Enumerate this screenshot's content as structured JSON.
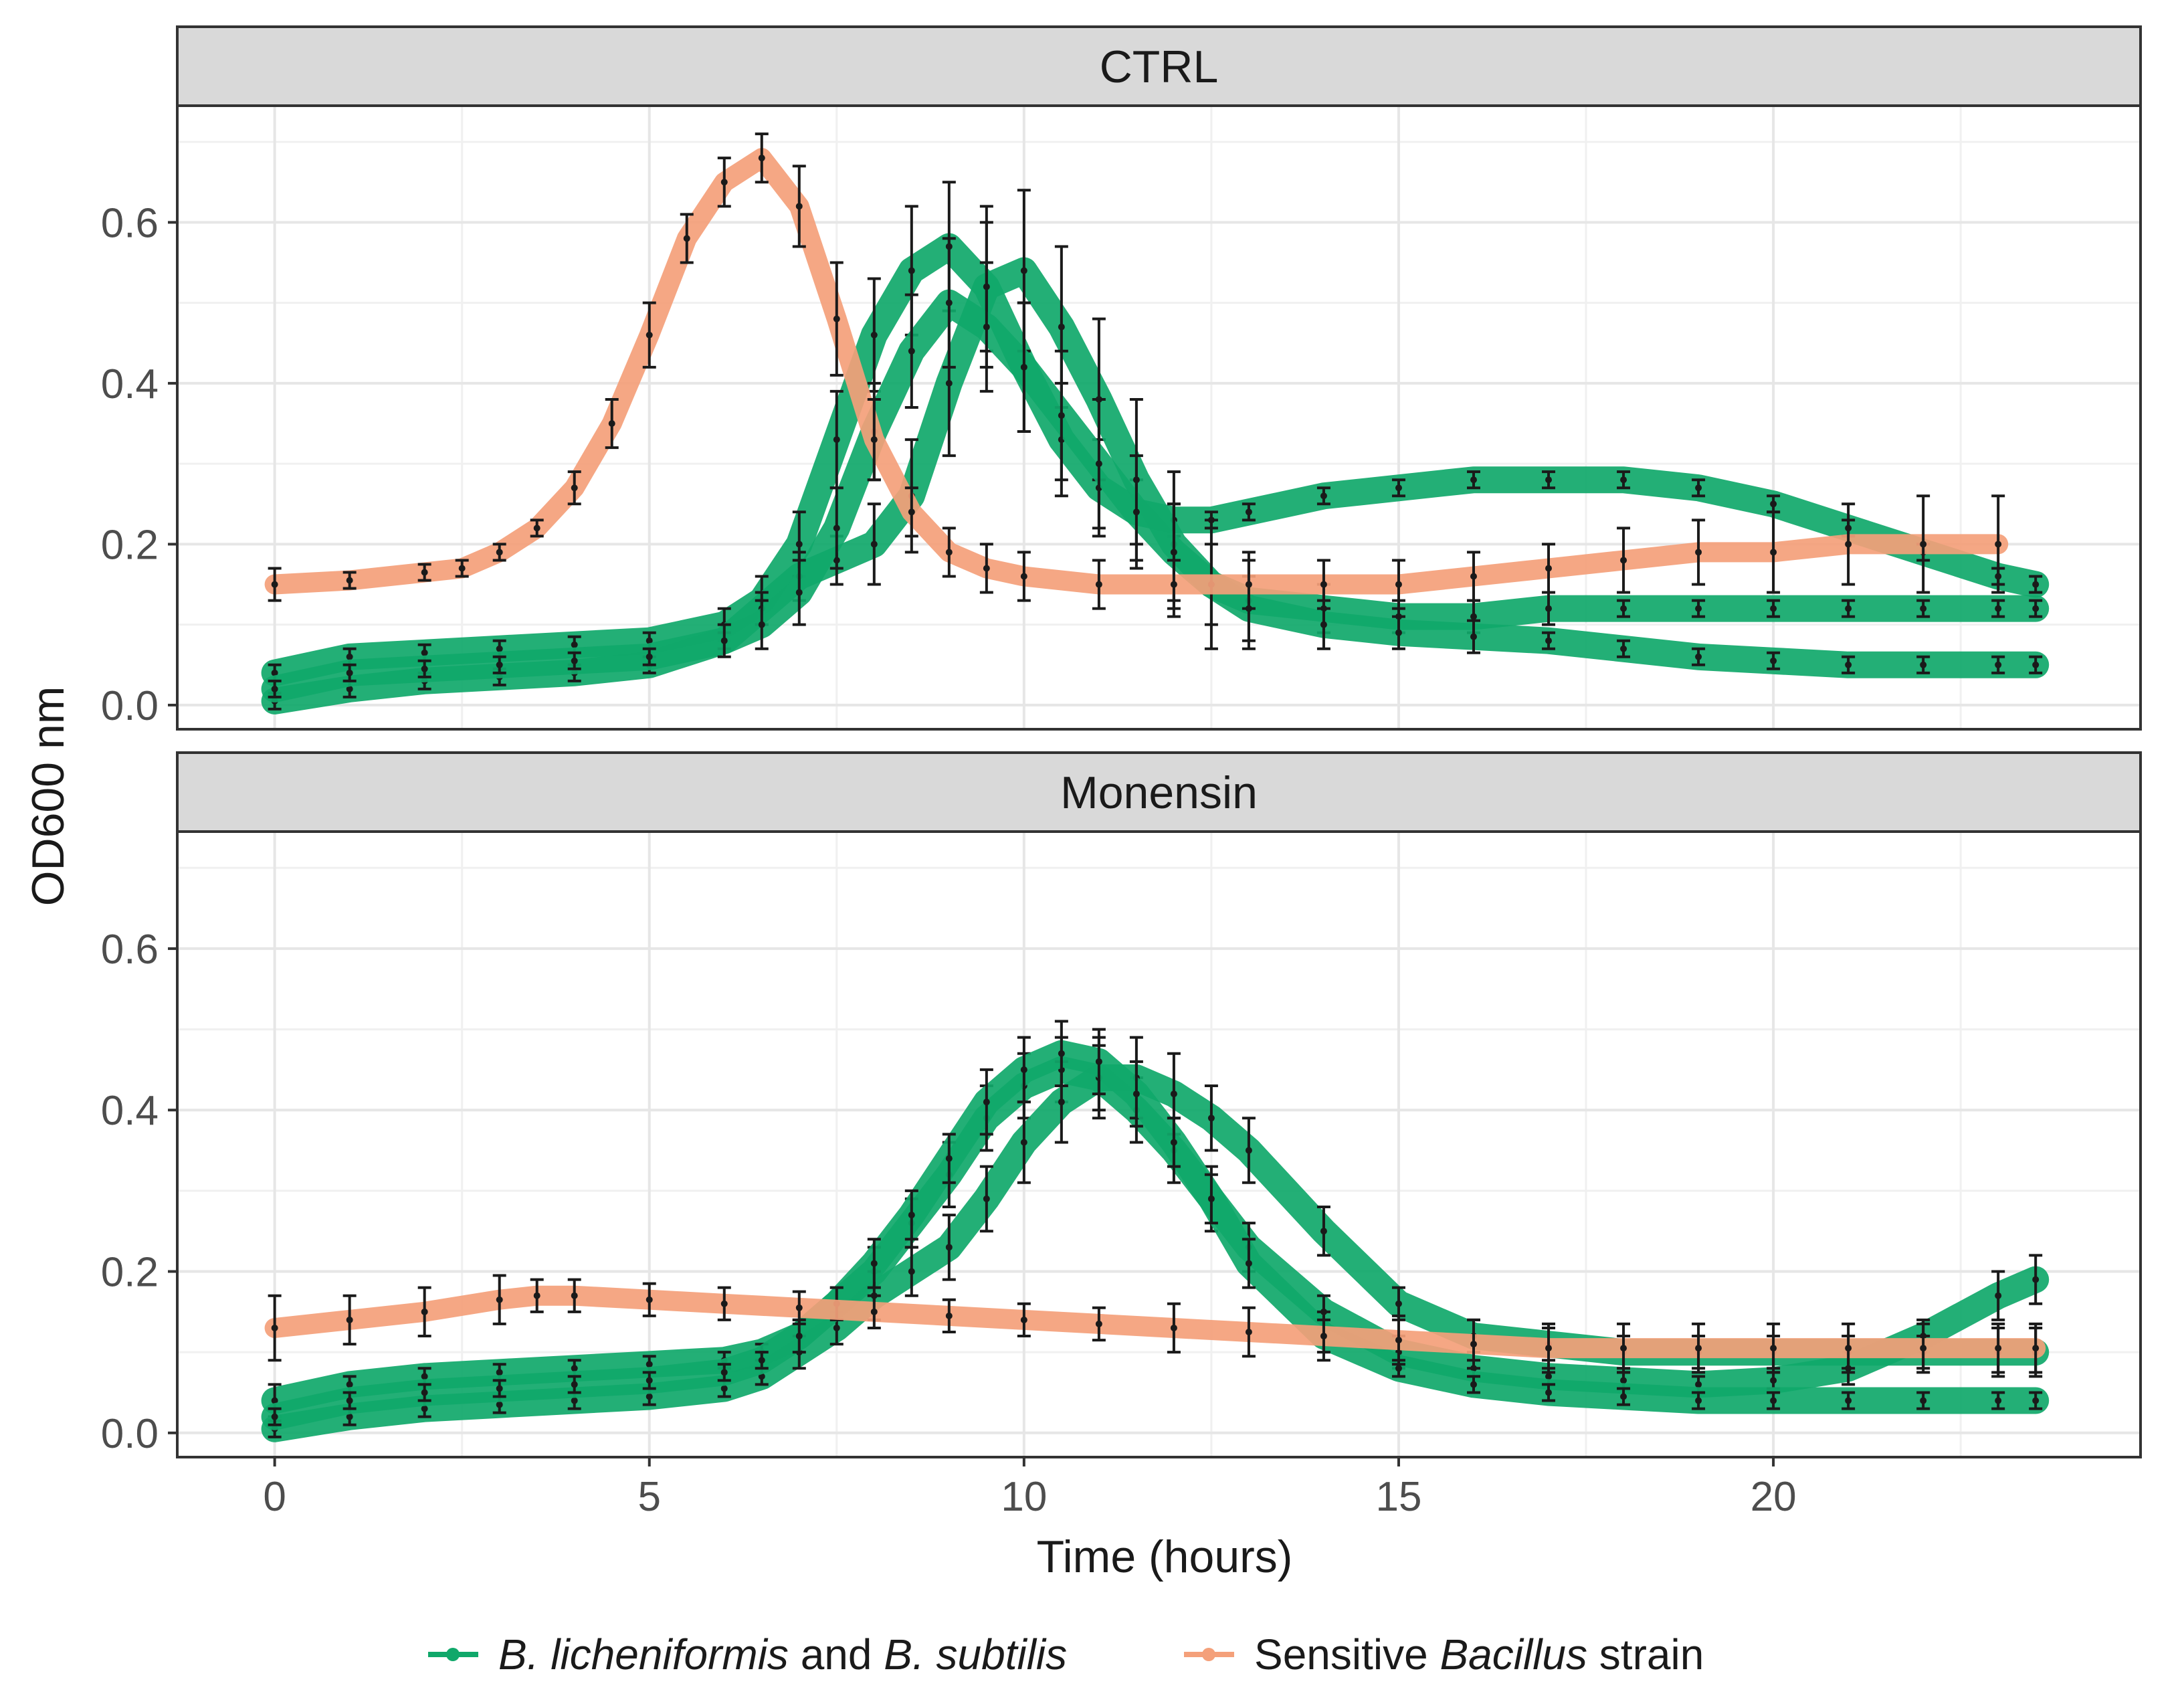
{
  "chart_data": {
    "type": "line",
    "xlabel": "Time (hours)",
    "ylabel": "OD600 nm",
    "xlim": [
      -1.3,
      24.9
    ],
    "ylim": [
      -0.03,
      0.745
    ],
    "x_ticks": [
      0,
      5,
      10,
      15,
      20
    ],
    "y_ticks": [
      0.0,
      0.2,
      0.4,
      0.6
    ],
    "y_tick_labels": [
      "0.0",
      "0.2",
      "0.4",
      "0.6"
    ],
    "x_tick_labels": [
      "0",
      "5",
      "10",
      "15",
      "20"
    ],
    "grid": true,
    "legend": {
      "position": "bottom",
      "entries": [
        {
          "italic1": "B. licheniformis",
          "plain": " and ",
          "italic2": "B. subtilis",
          "color": "#10a86a"
        },
        {
          "plain1": "Sensitive ",
          "italic": "Bacillus",
          "plain2": " strain",
          "color": "#f4a07a"
        }
      ]
    },
    "panels": [
      {
        "title": "CTRL",
        "series": [
          {
            "name": "B. licheniformis and B. subtilis (1)",
            "color": "#10a86a",
            "x": [
              0,
              1,
              2,
              3,
              4,
              5,
              6,
              6.5,
              7,
              7.5,
              8,
              8.5,
              9,
              9.5,
              10,
              10.5,
              11,
              11.5,
              12,
              12.5,
              13,
              14,
              15,
              16,
              17,
              18,
              19,
              20,
              21,
              22,
              23,
              23.5
            ],
            "y": [
              0.04,
              0.06,
              0.065,
              0.07,
              0.075,
              0.08,
              0.1,
              0.13,
              0.2,
              0.33,
              0.46,
              0.54,
              0.57,
              0.52,
              0.42,
              0.33,
              0.27,
              0.24,
              0.23,
              0.23,
              0.24,
              0.26,
              0.27,
              0.28,
              0.28,
              0.28,
              0.27,
              0.25,
              0.22,
              0.19,
              0.16,
              0.15
            ],
            "err": [
              0.01,
              0.01,
              0.01,
              0.01,
              0.01,
              0.01,
              0.02,
              0.03,
              0.04,
              0.06,
              0.07,
              0.08,
              0.08,
              0.08,
              0.08,
              0.07,
              0.06,
              0.04,
              0.02,
              0.01,
              0.01,
              0.01,
              0.01,
              0.01,
              0.01,
              0.01,
              0.01,
              0.01,
              0.01,
              0.01,
              0.01,
              0.01
            ]
          },
          {
            "name": "B. licheniformis and B. subtilis (2)",
            "color": "#10a86a",
            "x": [
              0,
              1,
              2,
              3,
              4,
              5,
              6,
              6.5,
              7,
              7.5,
              8,
              8.5,
              9,
              9.5,
              10,
              10.5,
              11,
              11.5,
              12,
              12.5,
              13,
              14,
              15,
              16,
              17,
              18,
              19,
              20,
              21,
              22,
              23,
              23.5
            ],
            "y": [
              0.005,
              0.02,
              0.03,
              0.035,
              0.04,
              0.05,
              0.08,
              0.12,
              0.16,
              0.18,
              0.2,
              0.26,
              0.4,
              0.52,
              0.54,
              0.47,
              0.38,
              0.28,
              0.2,
              0.15,
              0.13,
              0.12,
              0.11,
              0.11,
              0.12,
              0.12,
              0.12,
              0.12,
              0.12,
              0.12,
              0.12,
              0.12
            ],
            "err": [
              0.01,
              0.01,
              0.01,
              0.01,
              0.01,
              0.01,
              0.01,
              0.02,
              0.03,
              0.03,
              0.05,
              0.07,
              0.09,
              0.1,
              0.1,
              0.1,
              0.1,
              0.1,
              0.09,
              0.08,
              0.06,
              0.03,
              0.02,
              0.02,
              0.02,
              0.01,
              0.01,
              0.01,
              0.01,
              0.01,
              0.01,
              0.01
            ]
          },
          {
            "name": "B. licheniformis and B. subtilis (3)",
            "color": "#10a86a",
            "x": [
              0,
              1,
              2,
              3,
              4,
              5,
              6,
              6.5,
              7,
              7.5,
              8,
              8.5,
              9,
              9.5,
              10,
              10.5,
              11,
              11.5,
              12,
              12.5,
              13,
              14,
              15,
              16,
              17,
              18,
              19,
              20,
              21,
              22,
              23,
              23.5
            ],
            "y": [
              0.02,
              0.04,
              0.045,
              0.05,
              0.055,
              0.06,
              0.08,
              0.1,
              0.14,
              0.22,
              0.34,
              0.44,
              0.5,
              0.47,
              0.42,
              0.36,
              0.3,
              0.24,
              0.19,
              0.15,
              0.12,
              0.1,
              0.09,
              0.085,
              0.08,
              0.07,
              0.06,
              0.055,
              0.05,
              0.05,
              0.05,
              0.05
            ],
            "err": [
              0.01,
              0.01,
              0.01,
              0.01,
              0.01,
              0.01,
              0.02,
              0.03,
              0.04,
              0.05,
              0.06,
              0.07,
              0.08,
              0.08,
              0.08,
              0.08,
              0.08,
              0.07,
              0.06,
              0.05,
              0.04,
              0.03,
              0.02,
              0.02,
              0.01,
              0.01,
              0.01,
              0.01,
              0.01,
              0.01,
              0.01,
              0.01
            ]
          },
          {
            "name": "Sensitive Bacillus strain",
            "color": "#f4a07a",
            "x": [
              0,
              1,
              2,
              2.5,
              3,
              3.5,
              4,
              4.5,
              5,
              5.5,
              6,
              6.5,
              7,
              7.5,
              8,
              8.5,
              9,
              9.5,
              10,
              11,
              12,
              13,
              14,
              15,
              16,
              17,
              18,
              19,
              20,
              21,
              22,
              23
            ],
            "y": [
              0.15,
              0.155,
              0.165,
              0.17,
              0.19,
              0.22,
              0.27,
              0.35,
              0.46,
              0.58,
              0.65,
              0.68,
              0.62,
              0.48,
              0.33,
              0.24,
              0.19,
              0.17,
              0.16,
              0.15,
              0.15,
              0.15,
              0.15,
              0.15,
              0.16,
              0.17,
              0.18,
              0.19,
              0.19,
              0.2,
              0.2,
              0.2
            ],
            "err": [
              0.02,
              0.01,
              0.01,
              0.01,
              0.01,
              0.01,
              0.02,
              0.03,
              0.04,
              0.03,
              0.03,
              0.03,
              0.05,
              0.07,
              0.05,
              0.03,
              0.03,
              0.03,
              0.03,
              0.03,
              0.03,
              0.03,
              0.03,
              0.03,
              0.03,
              0.03,
              0.04,
              0.04,
              0.05,
              0.05,
              0.06,
              0.06
            ]
          }
        ]
      },
      {
        "title": "Monensin",
        "series": [
          {
            "name": "B. licheniformis and B. subtilis (1)",
            "color": "#10a86a",
            "x": [
              0,
              1,
              2,
              3,
              4,
              5,
              6,
              6.5,
              7,
              7.5,
              8,
              8.5,
              9,
              9.5,
              10,
              10.5,
              11,
              11.5,
              12,
              12.5,
              13,
              14,
              15,
              16,
              17,
              18,
              19,
              20,
              21,
              22,
              23,
              23.5
            ],
            "y": [
              0.04,
              0.06,
              0.07,
              0.075,
              0.08,
              0.085,
              0.09,
              0.1,
              0.12,
              0.16,
              0.2,
              0.26,
              0.32,
              0.39,
              0.43,
              0.45,
              0.44,
              0.4,
              0.35,
              0.29,
              0.23,
              0.15,
              0.1,
              0.08,
              0.07,
              0.065,
              0.06,
              0.065,
              0.08,
              0.12,
              0.17,
              0.19
            ],
            "err": [
              0.02,
              0.01,
              0.01,
              0.01,
              0.01,
              0.01,
              0.01,
              0.01,
              0.02,
              0.02,
              0.03,
              0.03,
              0.04,
              0.04,
              0.04,
              0.04,
              0.04,
              0.04,
              0.04,
              0.04,
              0.03,
              0.02,
              0.02,
              0.01,
              0.01,
              0.01,
              0.01,
              0.01,
              0.02,
              0.02,
              0.03,
              0.03
            ]
          },
          {
            "name": "B. licheniformis and B. subtilis (2)",
            "color": "#10a86a",
            "x": [
              0,
              1,
              2,
              3,
              4,
              5,
              6,
              6.5,
              7,
              7.5,
              8,
              8.5,
              9,
              9.5,
              10,
              10.5,
              11,
              11.5,
              12,
              12.5,
              13,
              14,
              15,
              16,
              17,
              18,
              19,
              20,
              21,
              22,
              23,
              23.5
            ],
            "y": [
              0.005,
              0.02,
              0.03,
              0.035,
              0.04,
              0.045,
              0.055,
              0.07,
              0.1,
              0.13,
              0.17,
              0.2,
              0.23,
              0.29,
              0.36,
              0.41,
              0.44,
              0.44,
              0.42,
              0.39,
              0.35,
              0.25,
              0.16,
              0.12,
              0.11,
              0.1,
              0.1,
              0.1,
              0.1,
              0.1,
              0.1,
              0.1
            ],
            "err": [
              0.01,
              0.01,
              0.01,
              0.01,
              0.01,
              0.01,
              0.01,
              0.01,
              0.02,
              0.02,
              0.03,
              0.03,
              0.04,
              0.04,
              0.05,
              0.05,
              0.05,
              0.05,
              0.05,
              0.04,
              0.04,
              0.03,
              0.02,
              0.02,
              0.02,
              0.02,
              0.02,
              0.02,
              0.02,
              0.02,
              0.03,
              0.03
            ]
          },
          {
            "name": "B. licheniformis and B. subtilis (3)",
            "color": "#10a86a",
            "x": [
              0,
              1,
              2,
              3,
              4,
              5,
              6,
              6.5,
              7,
              7.5,
              8,
              8.5,
              9,
              9.5,
              10,
              10.5,
              11,
              11.5,
              12,
              12.5,
              13,
              14,
              15,
              16,
              17,
              18,
              19,
              20,
              21,
              22,
              23,
              23.5
            ],
            "y": [
              0.02,
              0.04,
              0.05,
              0.055,
              0.06,
              0.065,
              0.075,
              0.09,
              0.12,
              0.16,
              0.21,
              0.27,
              0.34,
              0.41,
              0.45,
              0.47,
              0.46,
              0.42,
              0.36,
              0.29,
              0.21,
              0.12,
              0.08,
              0.06,
              0.05,
              0.045,
              0.04,
              0.04,
              0.04,
              0.04,
              0.04,
              0.04
            ],
            "err": [
              0.01,
              0.01,
              0.01,
              0.01,
              0.01,
              0.01,
              0.01,
              0.01,
              0.02,
              0.02,
              0.03,
              0.03,
              0.03,
              0.04,
              0.04,
              0.04,
              0.04,
              0.04,
              0.03,
              0.03,
              0.03,
              0.02,
              0.01,
              0.01,
              0.01,
              0.01,
              0.01,
              0.01,
              0.01,
              0.01,
              0.01,
              0.01
            ]
          },
          {
            "name": "Sensitive Bacillus strain",
            "color": "#f4a07a",
            "x": [
              0,
              1,
              2,
              3,
              3.5,
              4,
              5,
              6,
              7,
              8,
              9,
              10,
              11,
              12,
              13,
              14,
              15,
              16,
              17,
              18,
              19,
              20,
              21,
              22,
              23,
              23.5
            ],
            "y": [
              0.13,
              0.14,
              0.15,
              0.165,
              0.17,
              0.17,
              0.165,
              0.16,
              0.155,
              0.15,
              0.145,
              0.14,
              0.135,
              0.13,
              0.125,
              0.12,
              0.115,
              0.11,
              0.105,
              0.105,
              0.105,
              0.105,
              0.105,
              0.105,
              0.105,
              0.105
            ],
            "err": [
              0.04,
              0.03,
              0.03,
              0.03,
              0.02,
              0.02,
              0.02,
              0.02,
              0.02,
              0.02,
              0.02,
              0.02,
              0.02,
              0.03,
              0.03,
              0.03,
              0.03,
              0.03,
              0.03,
              0.03,
              0.03,
              0.03,
              0.03,
              0.03,
              0.03,
              0.03
            ]
          }
        ]
      }
    ]
  }
}
